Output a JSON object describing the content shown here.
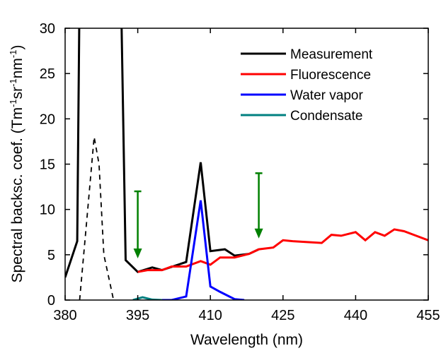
{
  "chart_data": {
    "type": "line",
    "xlabel": "Wavelength (nm)",
    "ylabel": {
      "prefix": "Spectral backsc. coef. (Tm",
      "sup1": "-1",
      "mid1": "sr",
      "sup2": "-1",
      "mid2": "nm",
      "sup3": "-1",
      "suffix": ")"
    },
    "xlim": [
      380,
      455
    ],
    "ylim": [
      0,
      30
    ],
    "xticks": [
      380,
      395,
      410,
      425,
      440,
      455
    ],
    "yticks": [
      0,
      5,
      10,
      15,
      20,
      25,
      30
    ],
    "legend_position": "top-right",
    "grid": false,
    "series": [
      {
        "name": "Measurement",
        "color": "#000000",
        "style": "solid",
        "x": [
          380,
          382.5,
          383,
          391.5,
          392.5,
          395,
          398,
          400,
          405,
          408,
          410,
          413,
          415,
          418,
          420
        ],
        "y": [
          2.5,
          6.5,
          35,
          35,
          4.4,
          3.1,
          3.6,
          3.3,
          4.2,
          15.2,
          5.4,
          5.6,
          4.9,
          5.1,
          5.6
        ]
      },
      {
        "name": "Fluorescence",
        "color": "#ff0000",
        "style": "solid",
        "x": [
          395,
          397,
          400,
          402,
          405,
          408,
          410,
          412,
          415,
          418,
          420,
          423,
          425,
          427,
          430,
          433,
          435,
          437,
          440,
          442,
          444,
          446,
          448,
          450,
          452,
          455
        ],
        "y": [
          3.1,
          3.3,
          3.3,
          3.7,
          3.7,
          4.3,
          3.9,
          4.7,
          4.7,
          5.1,
          5.6,
          5.8,
          6.6,
          6.5,
          6.4,
          6.3,
          7.2,
          7.1,
          7.5,
          6.6,
          7.5,
          7.1,
          7.8,
          7.6,
          7.2,
          6.6
        ]
      },
      {
        "name": "Water vapor",
        "color": "#0000ff",
        "style": "solid",
        "x": [
          400,
          402,
          405,
          408,
          410,
          412,
          415,
          417
        ],
        "y": [
          0,
          0,
          0.4,
          11,
          1.5,
          0.9,
          0.1,
          0
        ]
      },
      {
        "name": "Condensate",
        "color": "#008080",
        "style": "solid",
        "x": [
          394,
          396,
          398,
          400
        ],
        "y": [
          0,
          0.3,
          0.05,
          0
        ]
      },
      {
        "name": "",
        "color": "#000000",
        "style": "dashed",
        "x": [
          383,
          384.5,
          386,
          387,
          388,
          389,
          390
        ],
        "y": [
          0,
          9,
          18,
          15,
          5,
          2.5,
          0
        ]
      }
    ],
    "annotations": [
      {
        "type": "arrow",
        "color": "#008000",
        "x": 395,
        "y_from": 12,
        "y_to": 4.6
      },
      {
        "type": "arrow",
        "color": "#008000",
        "x": 420,
        "y_from": 14,
        "y_to": 6.8
      }
    ]
  }
}
